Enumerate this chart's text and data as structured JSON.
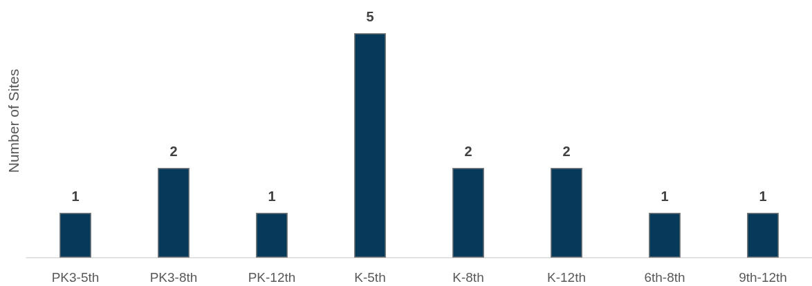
{
  "chart_data": {
    "type": "bar",
    "ylabel": "Number of Sites",
    "categories": [
      "PK3-5th",
      "PK3-8th",
      "PK-12th",
      "K-5th",
      "K-8th",
      "K-12th",
      "6th-8th",
      "9th-12th"
    ],
    "values": [
      1,
      2,
      1,
      5,
      2,
      2,
      1,
      1
    ],
    "color": "#073a5a",
    "data_labels": true
  }
}
